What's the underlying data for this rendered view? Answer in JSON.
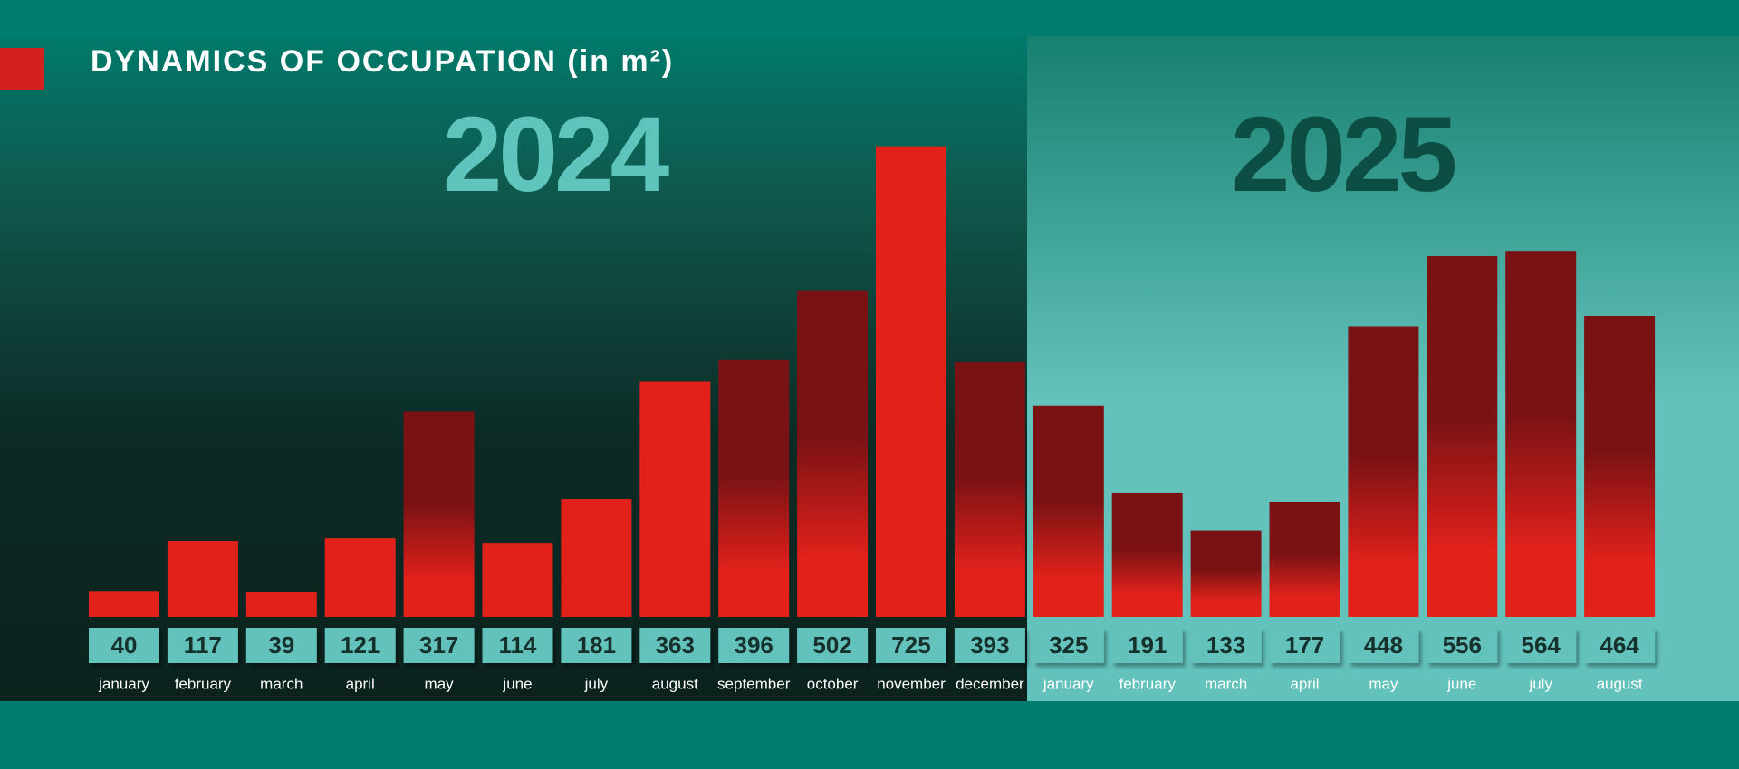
{
  "title": "DYNAMICS OF OCCUPATION (in m²)",
  "chart_data": [
    {
      "type": "bar",
      "title": "2024",
      "categories": [
        "january",
        "february",
        "march",
        "april",
        "may",
        "june",
        "july",
        "august",
        "september",
        "october",
        "november",
        "december"
      ],
      "values": [
        40,
        117,
        39,
        121,
        317,
        114,
        181,
        363,
        396,
        502,
        725,
        393
      ],
      "colors": [
        "#e2211b",
        "#e2211b",
        "#e2211b",
        "#e2211b",
        "#7a1214",
        "#e2211b",
        "#e2211b",
        "#e2211b",
        "#7a1214",
        "#7a1214",
        "#e2211b",
        "#7a1214"
      ]
    },
    {
      "type": "bar",
      "title": "2025",
      "categories": [
        "january",
        "february",
        "march",
        "april",
        "may",
        "june",
        "july",
        "august"
      ],
      "values": [
        325,
        191,
        133,
        177,
        448,
        556,
        564,
        464
      ],
      "colors": [
        "#7a1214",
        "#7a1214",
        "#7a1214",
        "#7a1214",
        "#7a1214",
        "#7a1214",
        "#7a1214",
        "#7a1214"
      ]
    }
  ]
}
